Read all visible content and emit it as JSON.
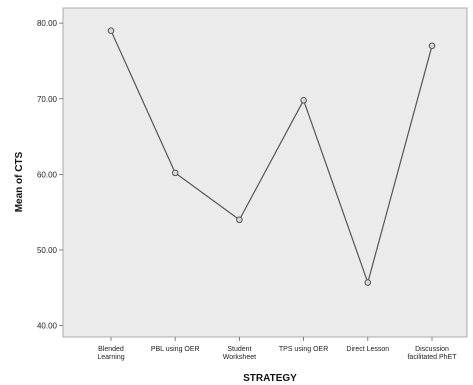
{
  "chart_data": {
    "type": "line",
    "xlabel": "STRATEGY",
    "ylabel": "Mean of CTS",
    "categories": [
      [
        "Blended",
        "Learning"
      ],
      [
        "PBL using OER"
      ],
      [
        "Student",
        "Worksheet"
      ],
      [
        "TPS using OER"
      ],
      [
        "Direct Lesson"
      ],
      [
        "Discussion",
        "facilitated PhET"
      ]
    ],
    "values": [
      79.0,
      60.2,
      54.0,
      69.8,
      45.7,
      77.0
    ],
    "ylim": [
      38.5,
      82.0
    ],
    "yticks": [
      "40.00",
      "50.00",
      "60.00",
      "70.00",
      "80.00"
    ],
    "ytick_values": [
      40,
      50,
      60,
      70,
      80
    ],
    "grid": false,
    "colors": {
      "plot_background": "#ebebeb",
      "line": "#555555",
      "marker": "#555555"
    }
  }
}
